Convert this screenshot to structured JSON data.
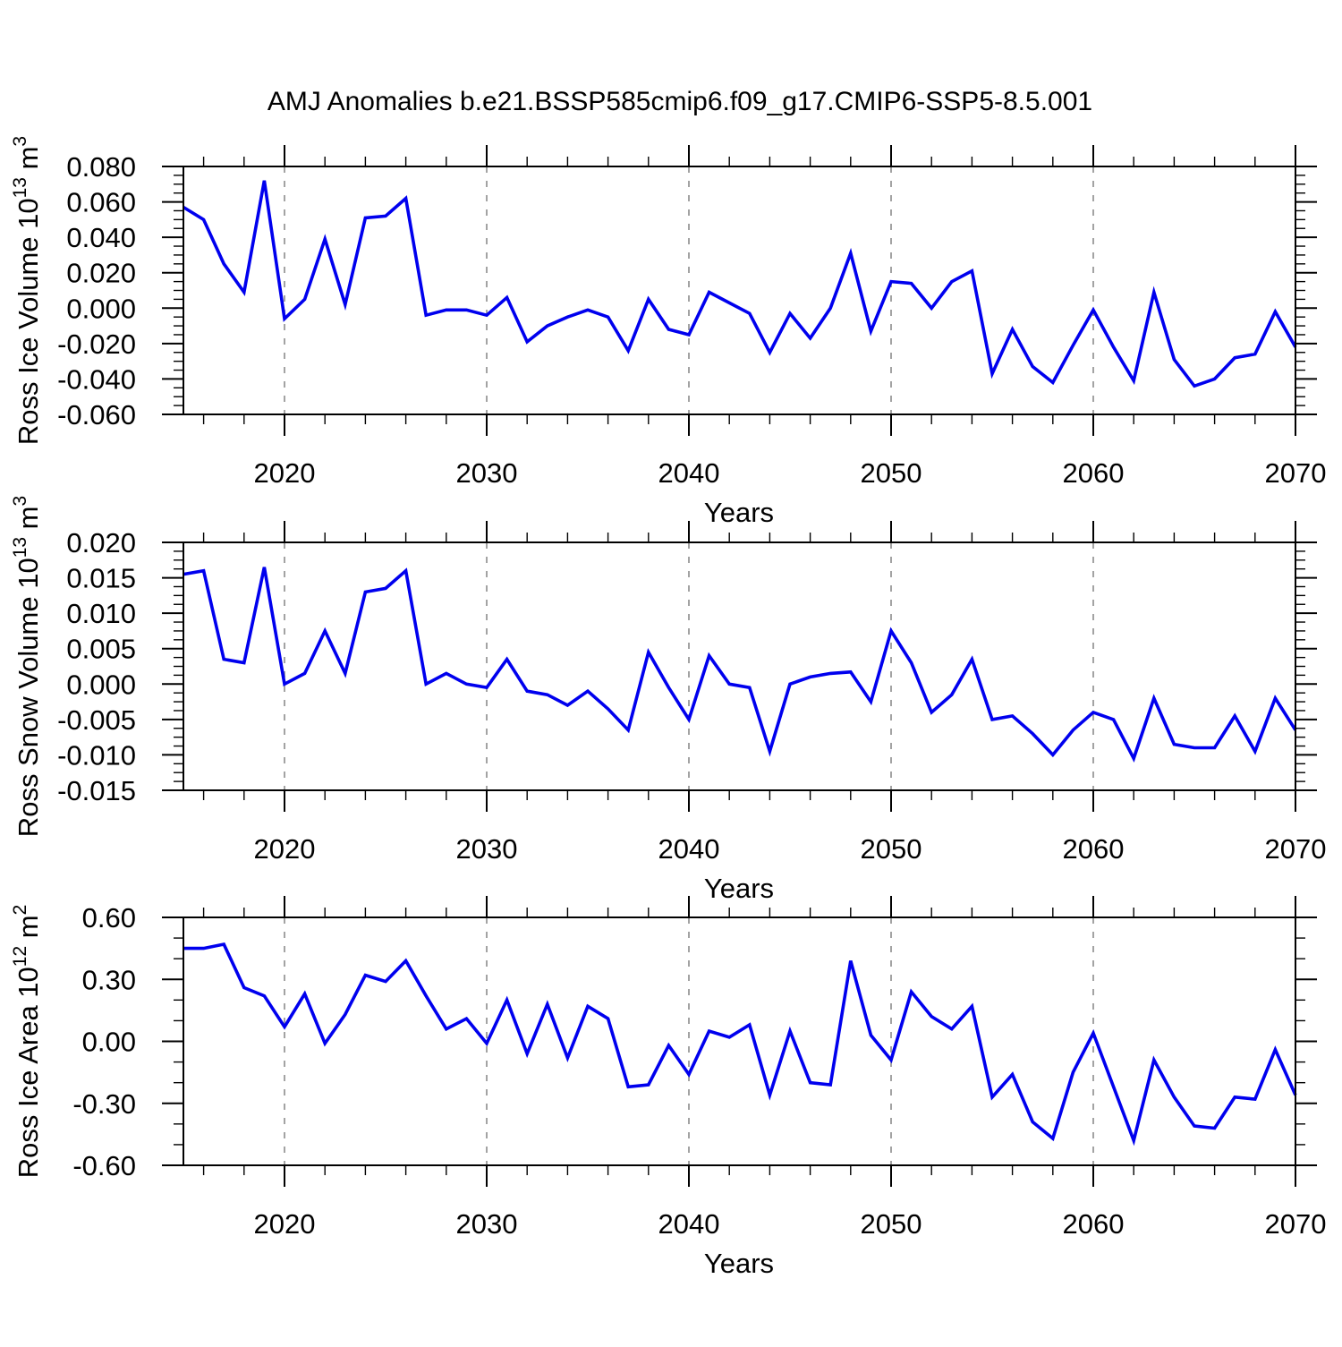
{
  "title": "AMJ Anomalies b.e21.BSSP585cmip6.f09_g17.CMIP6-SSP5-8.5.001",
  "xlabel": "Years",
  "colors": {
    "line": "#0000ee",
    "axis": "#000000",
    "grid": "#999999",
    "background": "#ffffff"
  },
  "x_axis": {
    "start": 2015,
    "end": 2070,
    "major_ticks": [
      2020,
      2030,
      2040,
      2050,
      2060,
      2070
    ],
    "major_tick_labels": [
      "2020",
      "2030",
      "2040",
      "2050",
      "2060",
      "2070"
    ],
    "minor_step": 2,
    "gridlines": [
      2020,
      2030,
      2040,
      2050,
      2060
    ]
  },
  "years": [
    2015,
    2016,
    2017,
    2018,
    2019,
    2020,
    2021,
    2022,
    2023,
    2024,
    2025,
    2026,
    2027,
    2028,
    2029,
    2030,
    2031,
    2032,
    2033,
    2034,
    2035,
    2036,
    2037,
    2038,
    2039,
    2040,
    2041,
    2042,
    2043,
    2044,
    2045,
    2046,
    2047,
    2048,
    2049,
    2050,
    2051,
    2052,
    2053,
    2054,
    2055,
    2056,
    2057,
    2058,
    2059,
    2060,
    2061,
    2062,
    2063,
    2064,
    2065,
    2066,
    2067,
    2068,
    2069,
    2070
  ],
  "chart_data": [
    {
      "type": "line",
      "name": "ross-ice-volume",
      "ylabel": "Ross Ice Volume 10^13 m^3",
      "ylabel_parts": [
        "Ross Ice Volume 10",
        "13",
        " m",
        "3"
      ],
      "ylim": [
        -0.06,
        0.08
      ],
      "ytick_step": 0.02,
      "yminor_step": 0.005,
      "ytick_labels": [
        "0.080",
        "0.060",
        "0.040",
        "0.020",
        "0.000",
        "-0.020",
        "-0.040",
        "-0.060"
      ],
      "grid": "vertical-dashed",
      "legend": "none",
      "values": [
        0.057,
        0.05,
        0.025,
        0.009,
        0.072,
        -0.006,
        0.005,
        0.039,
        0.002,
        0.051,
        0.052,
        0.062,
        -0.004,
        -0.001,
        -0.001,
        -0.004,
        0.006,
        -0.019,
        -0.01,
        -0.005,
        -0.001,
        -0.005,
        -0.024,
        0.005,
        -0.012,
        -0.015,
        0.009,
        0.003,
        -0.003,
        -0.025,
        -0.003,
        -0.017,
        0.0,
        0.031,
        -0.013,
        0.015,
        0.014,
        0.0,
        0.015,
        0.021,
        -0.037,
        -0.012,
        -0.033,
        -0.042,
        -0.021,
        -0.001,
        -0.022,
        -0.041,
        0.009,
        -0.029,
        -0.044,
        -0.04,
        -0.028,
        -0.026,
        -0.002,
        -0.022
      ]
    },
    {
      "type": "line",
      "name": "ross-snow-volume",
      "ylabel": "Ross Snow Volume 10^13 m^3",
      "ylabel_parts": [
        "Ross Snow Volume 10",
        "13",
        " m",
        "3"
      ],
      "ylim": [
        -0.015,
        0.02
      ],
      "ytick_step": 0.005,
      "yminor_step": 0.00125,
      "ytick_labels": [
        "0.020",
        "0.015",
        "0.010",
        "0.005",
        "0.000",
        "-0.005",
        "-0.010",
        "-0.015"
      ],
      "grid": "vertical-dashed",
      "legend": "none",
      "values": [
        0.0155,
        0.016,
        0.0035,
        0.003,
        0.0165,
        0.0,
        0.0015,
        0.0075,
        0.0015,
        0.013,
        0.0135,
        0.016,
        0.0,
        0.0015,
        0.0,
        -0.0005,
        0.0035,
        -0.001,
        -0.0015,
        -0.003,
        -0.001,
        -0.0035,
        -0.0065,
        0.0045,
        -0.0005,
        -0.005,
        0.004,
        0.0,
        -0.0005,
        -0.0095,
        0.0,
        0.001,
        0.0015,
        0.0017,
        -0.0025,
        0.0075,
        0.003,
        -0.004,
        -0.0015,
        0.0035,
        -0.005,
        -0.0045,
        -0.007,
        -0.01,
        -0.0065,
        -0.004,
        -0.005,
        -0.0105,
        -0.002,
        -0.0085,
        -0.009,
        -0.009,
        -0.0045,
        -0.0095,
        -0.002,
        -0.0065
      ]
    },
    {
      "type": "line",
      "name": "ross-ice-area",
      "ylabel": "Ross Ice Area 10^12 m^2",
      "ylabel_parts": [
        "Ross Ice Area 10",
        "12",
        " m",
        "2"
      ],
      "ylim": [
        -0.6,
        0.6
      ],
      "ytick_step": 0.3,
      "yminor_step": 0.1,
      "ytick_labels": [
        "0.60",
        "0.30",
        "0.00",
        "-0.30",
        "-0.60"
      ],
      "grid": "vertical-dashed",
      "legend": "none",
      "values": [
        0.45,
        0.45,
        0.47,
        0.26,
        0.22,
        0.07,
        0.23,
        -0.01,
        0.13,
        0.32,
        0.29,
        0.39,
        0.22,
        0.06,
        0.11,
        -0.01,
        0.2,
        -0.06,
        0.18,
        -0.08,
        0.17,
        0.11,
        -0.22,
        -0.21,
        -0.02,
        -0.16,
        0.05,
        0.02,
        0.08,
        -0.26,
        0.05,
        -0.2,
        -0.21,
        0.39,
        0.03,
        -0.09,
        0.24,
        0.12,
        0.06,
        0.17,
        -0.27,
        -0.16,
        -0.39,
        -0.47,
        -0.15,
        0.04,
        -0.22,
        -0.48,
        -0.09,
        -0.27,
        -0.41,
        -0.42,
        -0.27,
        -0.28,
        -0.04,
        -0.26
      ]
    }
  ]
}
